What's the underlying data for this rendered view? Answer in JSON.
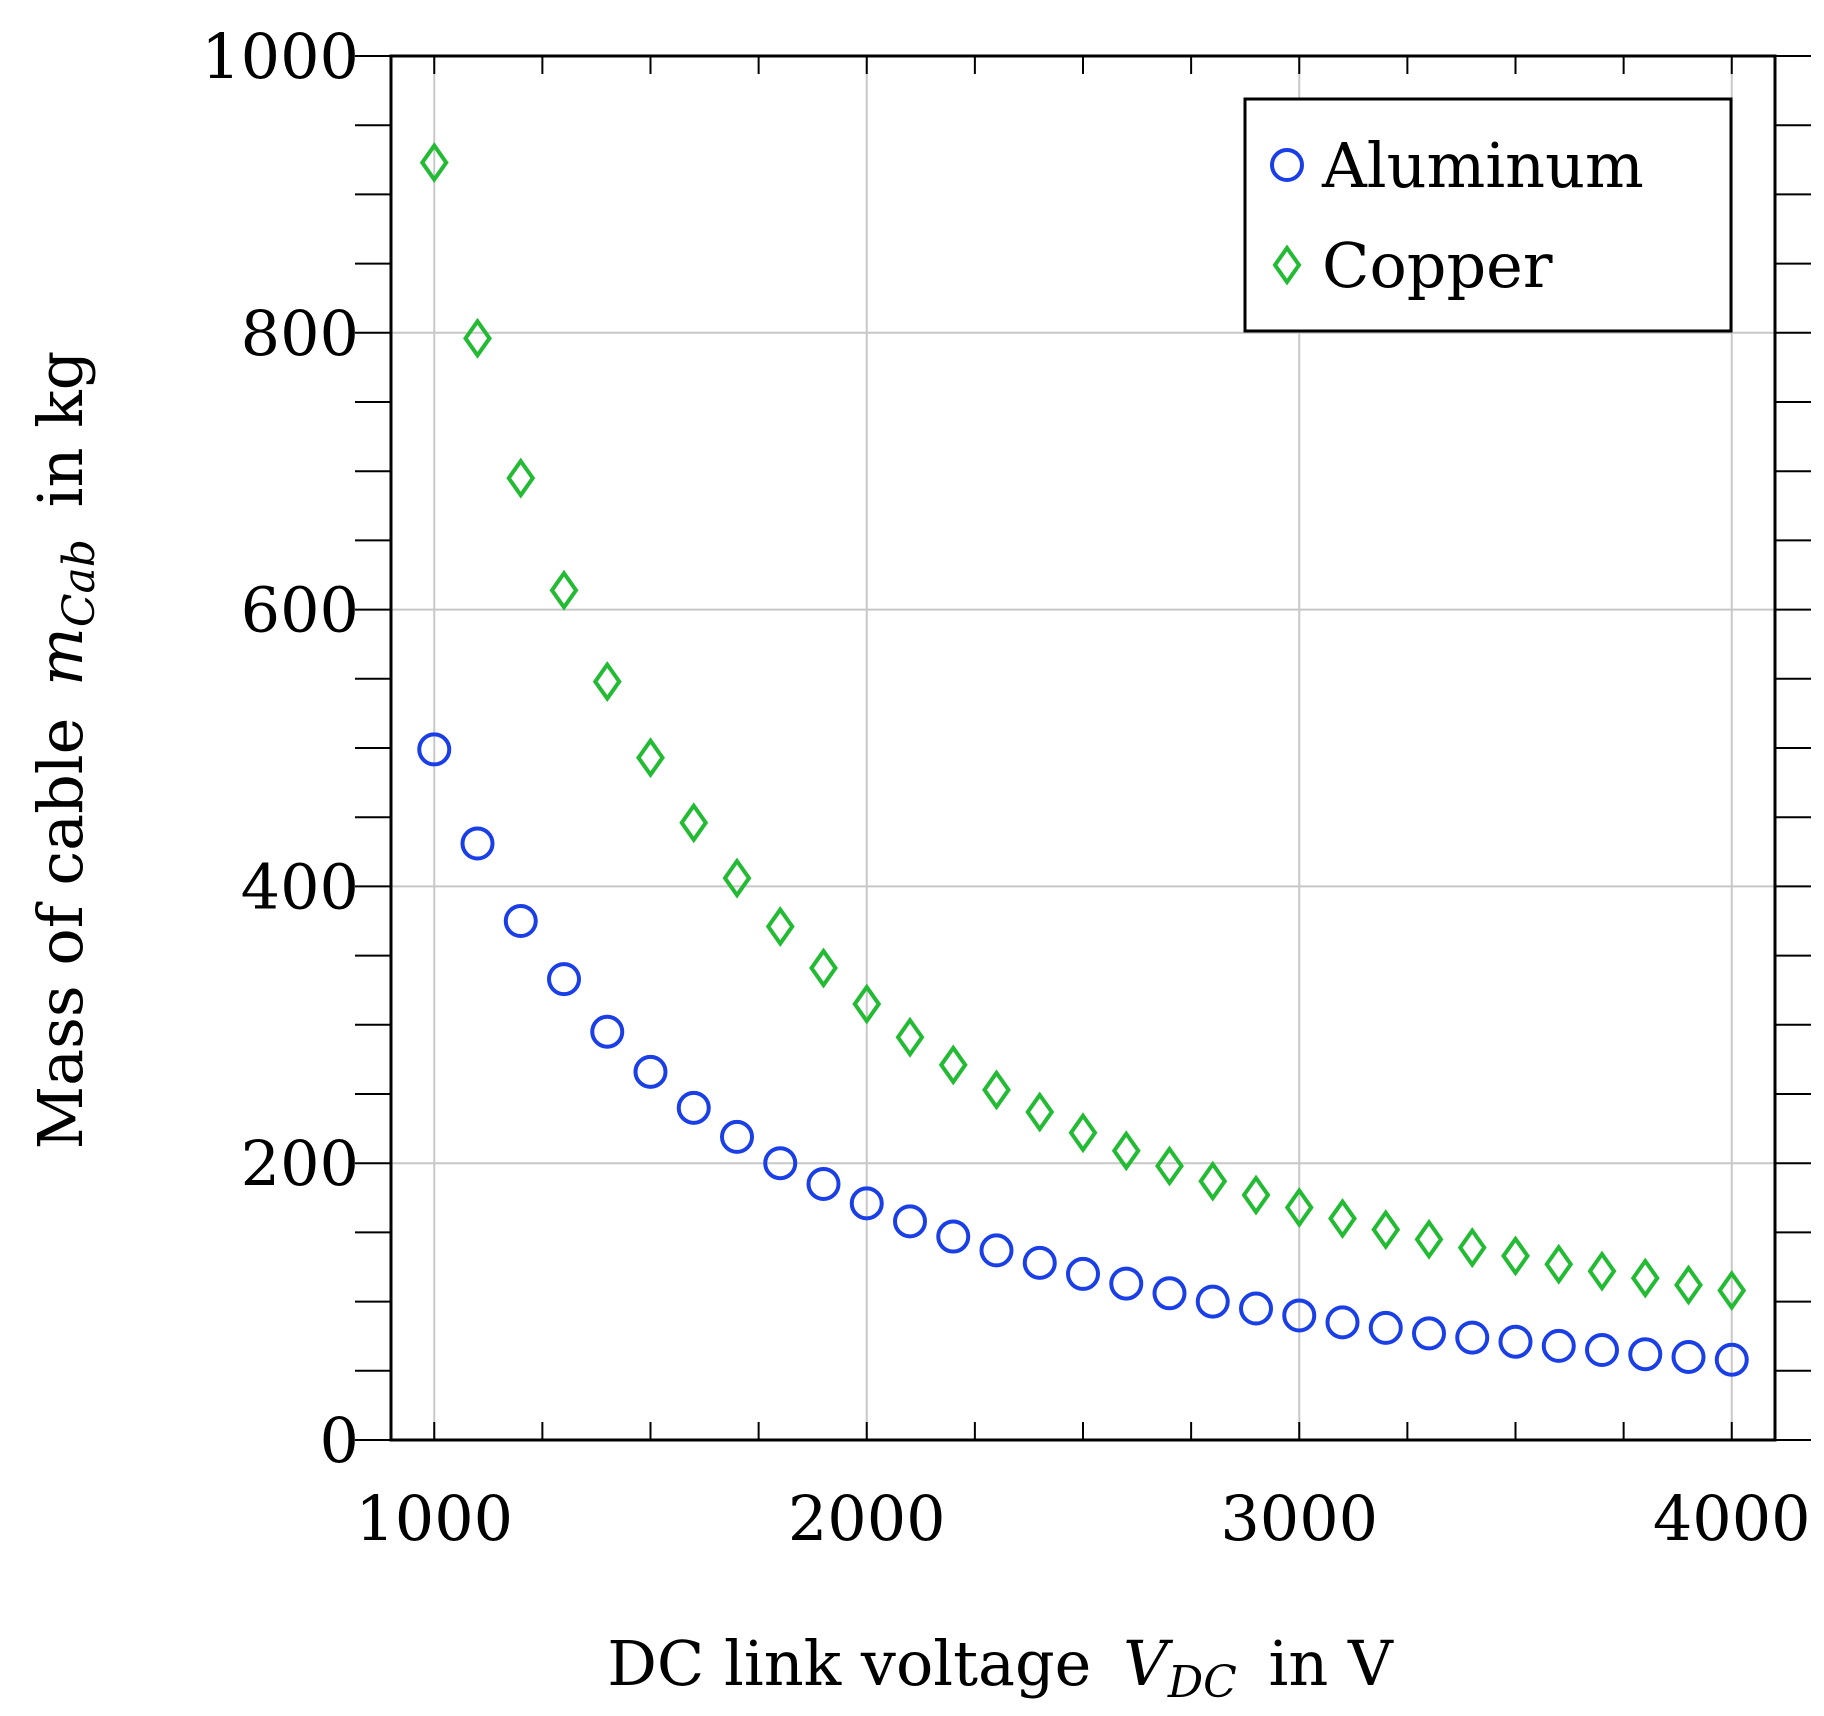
{
  "chart_data": {
    "type": "scatter",
    "xlabel": "DC link voltage",
    "xlabel_symbol": "V",
    "xlabel_subscript": "DC",
    "xlabel_unit": "in V",
    "ylabel": "Mass of cable",
    "ylabel_symbol": "m",
    "ylabel_subscript": "Cab",
    "ylabel_unit": "in kg",
    "xlim": [
      900,
      4100
    ],
    "ylim": [
      0,
      1000
    ],
    "xticks": [
      1000,
      2000,
      3000,
      4000
    ],
    "yticks": [
      0,
      200,
      400,
      600,
      800,
      1000
    ],
    "xtick_labels": [
      "1000",
      "2000",
      "3000",
      "4000"
    ],
    "ytick_labels": [
      "0",
      "200",
      "400",
      "600",
      "800",
      "1000"
    ],
    "x_minor_step": 250,
    "y_minor_step": 50,
    "grid": true,
    "legend_position": "top-right",
    "x": [
      1000,
      1100,
      1200,
      1300,
      1400,
      1500,
      1600,
      1700,
      1800,
      1900,
      2000,
      2100,
      2200,
      2300,
      2400,
      2500,
      2600,
      2700,
      2800,
      2900,
      3000,
      3100,
      3200,
      3300,
      3400,
      3500,
      3600,
      3700,
      3800,
      3900,
      4000
    ],
    "series": [
      {
        "name": "Aluminum",
        "marker": "circle",
        "color": "#1a3fe6",
        "values": [
          499,
          431,
          375,
          333,
          295,
          266,
          240,
          219,
          200,
          185,
          171,
          158,
          147,
          137,
          128,
          120,
          113,
          106,
          100,
          95,
          90,
          85,
          81,
          77,
          74,
          71,
          68,
          65,
          62,
          60,
          58
        ]
      },
      {
        "name": "Copper",
        "marker": "diamond",
        "color": "#22bb33",
        "values": [
          923,
          796,
          695,
          614,
          548,
          493,
          446,
          406,
          371,
          341,
          315,
          291,
          271,
          253,
          237,
          222,
          209,
          198,
          187,
          177,
          168,
          160,
          152,
          145,
          139,
          133,
          127,
          122,
          117,
          112,
          108
        ]
      }
    ]
  }
}
